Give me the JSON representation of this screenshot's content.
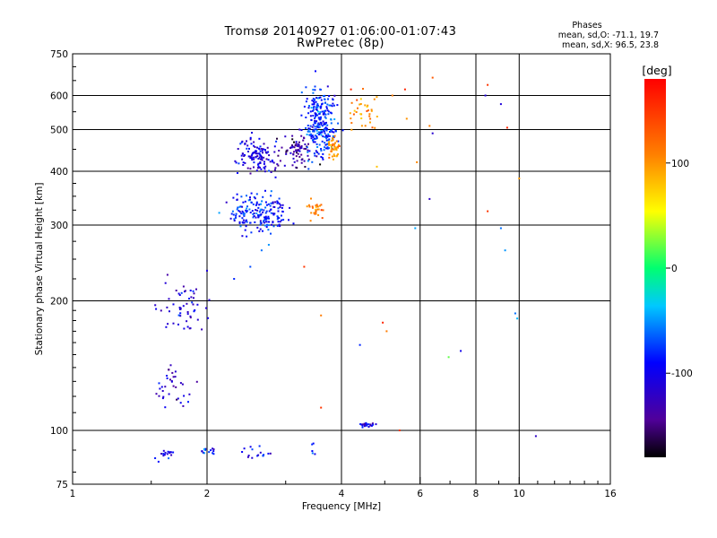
{
  "title_line1": "Tromsø 20140927 01:06:00-01:07:43",
  "title_line2": "RwPretec (8p)",
  "phases": {
    "title": "Phases",
    "o_line": "mean, sd,O: -71.1, 19.7",
    "x_line": "mean, sd,X:  96.5, 23.8"
  },
  "colorbar": {
    "unit": "[deg]",
    "ticks": [
      100,
      0,
      -100
    ],
    "range": [
      -180,
      180
    ]
  },
  "chart_data": {
    "type": "scatter",
    "xlabel": "Frequency [MHz]",
    "ylabel": "Stationary phase Virtual Height [km]",
    "xscale": "log",
    "yscale": "log",
    "xlim": [
      1,
      16
    ],
    "ylim": [
      75,
      750
    ],
    "xticks": [
      1,
      2,
      4,
      6,
      8,
      10,
      16
    ],
    "yticks": [
      75,
      100,
      200,
      300,
      400,
      500,
      600,
      750
    ],
    "grid_x": [
      2,
      4,
      6,
      8,
      10
    ],
    "grid_y": [
      100,
      200,
      300,
      400,
      500,
      600
    ],
    "clusters": [
      {
        "fc": 1.62,
        "hc": 88,
        "fr": 0.035,
        "hr": 0.015,
        "n": 16,
        "p": -105
      },
      {
        "fc": 2.0,
        "hc": 89,
        "fr": 0.025,
        "hr": 0.02,
        "n": 14,
        "p": -88
      },
      {
        "fc": 2.55,
        "hc": 89,
        "fr": 0.06,
        "hr": 0.015,
        "n": 16,
        "p": -92
      },
      {
        "fc": 3.45,
        "hc": 90,
        "fr": 0.01,
        "hr": 0.02,
        "n": 5,
        "p": -95
      },
      {
        "fc": 4.55,
        "hc": 103,
        "fr": 0.02,
        "hr": 0.006,
        "n": 26,
        "p": -95
      },
      {
        "fc": 1.68,
        "hc": 126,
        "fr": 0.05,
        "hr": 0.06,
        "n": 35,
        "p": -118
      },
      {
        "fc": 1.78,
        "hc": 192,
        "fr": 0.06,
        "hr": 0.07,
        "n": 55,
        "p": -110
      },
      {
        "fc": 2.6,
        "hc": 318,
        "fr": 0.08,
        "hr": 0.05,
        "n": 190,
        "p": -85
      },
      {
        "fc": 2.6,
        "hc": 432,
        "fr": 0.06,
        "hr": 0.05,
        "n": 120,
        "p": -105
      },
      {
        "fc": 3.2,
        "hc": 445,
        "fr": 0.05,
        "hr": 0.04,
        "n": 80,
        "p": -135
      },
      {
        "fc": 3.6,
        "hc": 515,
        "fr": 0.04,
        "hr": 0.1,
        "n": 260,
        "p": -80
      },
      {
        "fc": 3.85,
        "hc": 455,
        "fr": 0.015,
        "hr": 0.03,
        "n": 40,
        "p": 105
      },
      {
        "fc": 4.5,
        "hc": 550,
        "fr": 0.04,
        "hr": 0.06,
        "n": 35,
        "p": 100
      },
      {
        "fc": 3.5,
        "hc": 325,
        "fr": 0.025,
        "hr": 0.03,
        "n": 28,
        "p": 110
      }
    ],
    "points": [
      [
        2.0,
        235,
        -110
      ],
      [
        2.3,
        225,
        -80
      ],
      [
        2.5,
        240,
        -70
      ],
      [
        2.65,
        262,
        -60
      ],
      [
        2.75,
        270,
        -50
      ],
      [
        3.3,
        240,
        150
      ],
      [
        3.6,
        185,
        110
      ],
      [
        3.6,
        113,
        150
      ],
      [
        4.4,
        158,
        -80
      ],
      [
        4.95,
        178,
        160
      ],
      [
        5.05,
        170,
        110
      ],
      [
        5.4,
        100,
        150
      ],
      [
        5.85,
        295,
        -45
      ],
      [
        6.3,
        345,
        -120
      ],
      [
        6.4,
        490,
        -115
      ],
      [
        6.3,
        510,
        110
      ],
      [
        6.4,
        660,
        130
      ],
      [
        6.95,
        148,
        20
      ],
      [
        7.4,
        153,
        -100
      ],
      [
        8.4,
        600,
        -110
      ],
      [
        8.5,
        635,
        150
      ],
      [
        8.5,
        323,
        150
      ],
      [
        9.1,
        573,
        -110
      ],
      [
        9.1,
        295,
        -60
      ],
      [
        9.3,
        262,
        -50
      ],
      [
        9.4,
        505,
        160
      ],
      [
        9.8,
        187,
        -60
      ],
      [
        9.9,
        182,
        -40
      ],
      [
        10.0,
        385,
        100
      ],
      [
        10.9,
        97,
        -120
      ],
      [
        5.6,
        530,
        100
      ],
      [
        5.2,
        600,
        110
      ],
      [
        5.55,
        620,
        160
      ],
      [
        5.9,
        420,
        105
      ],
      [
        4.8,
        410,
        80
      ],
      [
        4.2,
        620,
        160
      ]
    ]
  }
}
